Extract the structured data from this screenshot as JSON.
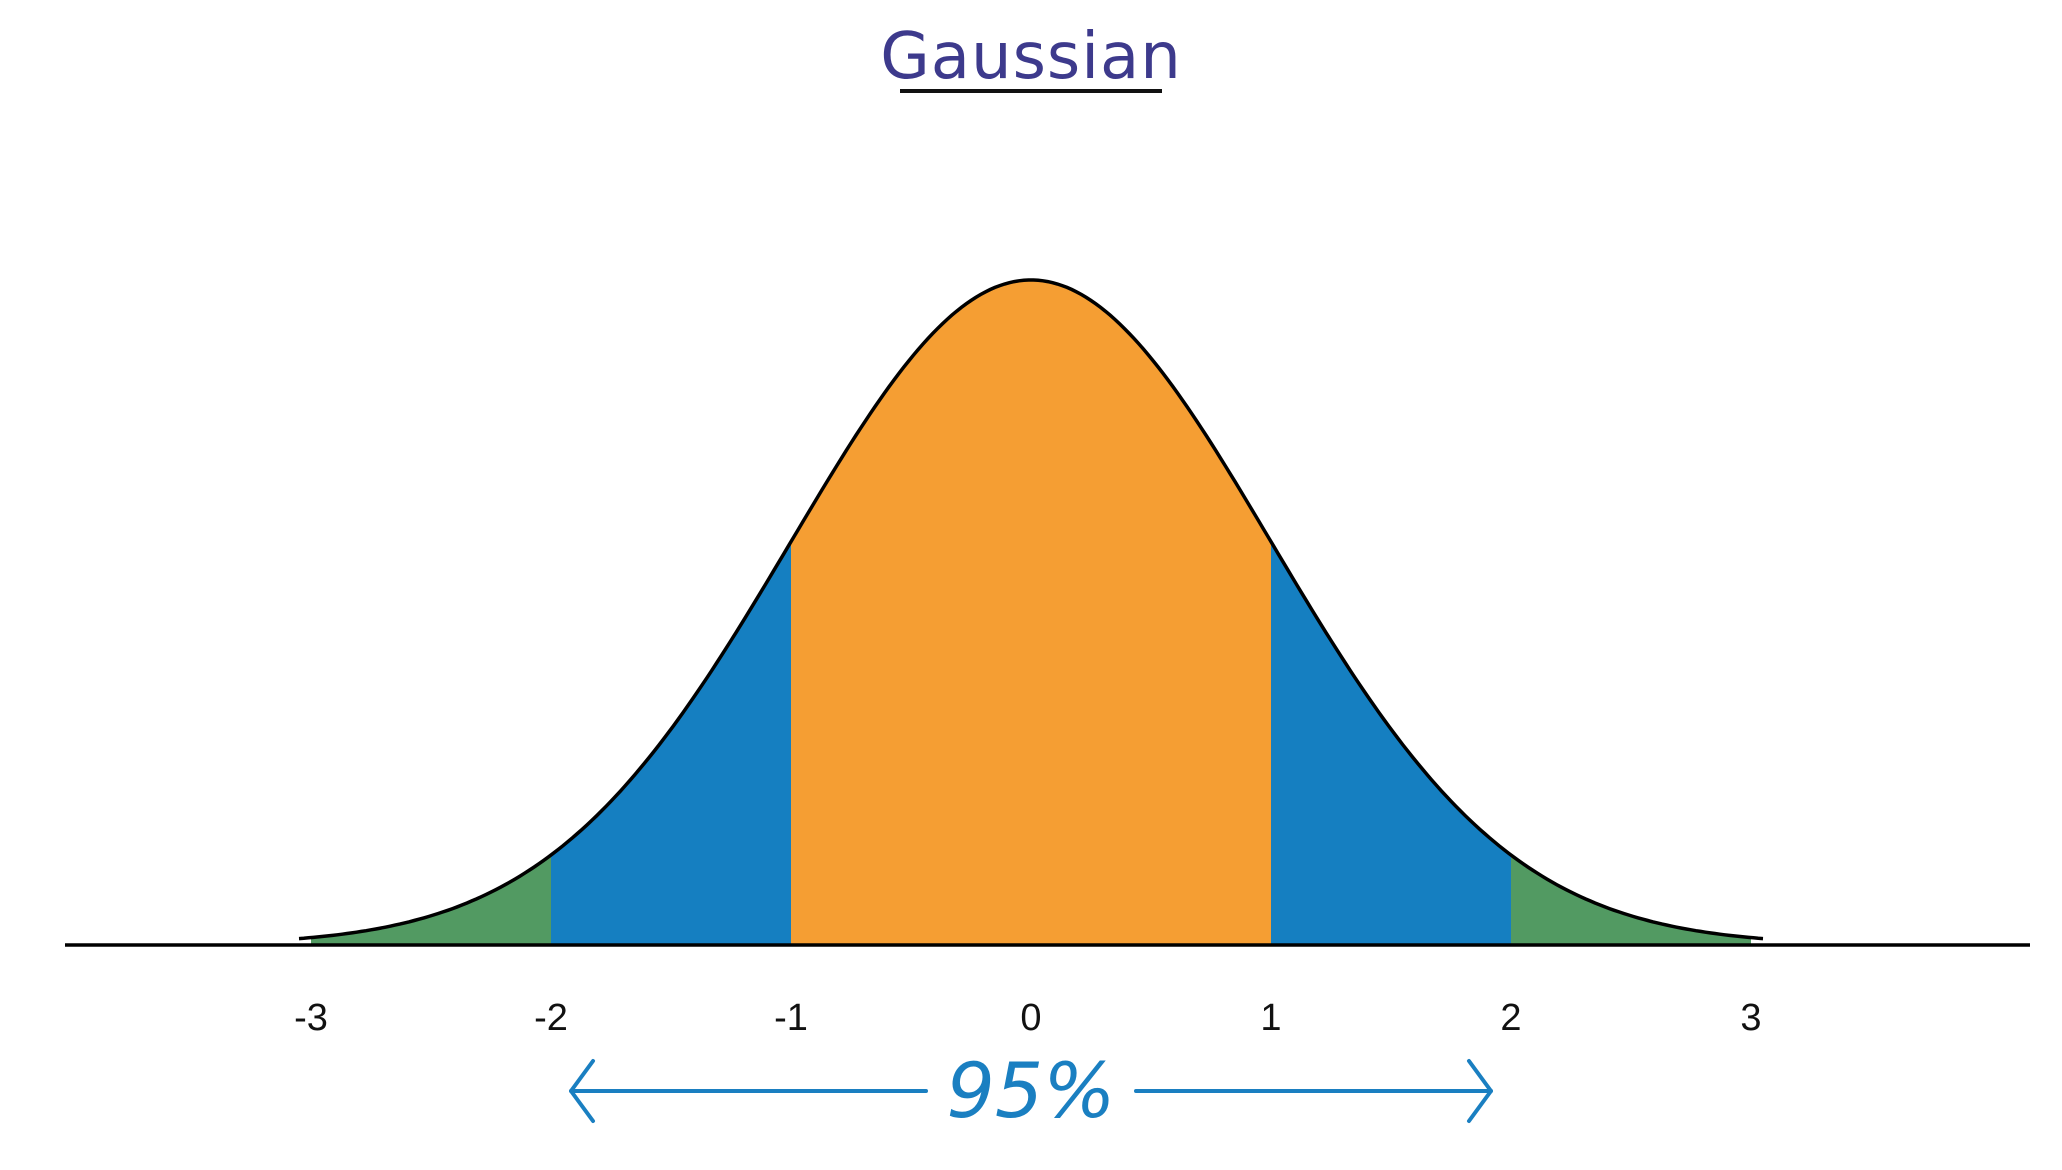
{
  "title": "Gaussian",
  "colors": {
    "inner_band": "#f59e33",
    "middle_band": "#157fc1",
    "outer_band": "#529a62",
    "curve": "#000000",
    "title": "#3d3a8c",
    "annotation": "#1a7fc1"
  },
  "distribution": {
    "mean": 0,
    "std_dev": 1,
    "x_range": [
      -4.2,
      4.2
    ]
  },
  "ticks": [
    {
      "value": -3,
      "label": "-3"
    },
    {
      "value": -2,
      "label": "-2"
    },
    {
      "value": -1,
      "label": "-1"
    },
    {
      "value": 0,
      "label": "0"
    },
    {
      "value": 1,
      "label": "1"
    },
    {
      "value": 2,
      "label": "2"
    },
    {
      "value": 3,
      "label": "3"
    }
  ],
  "bands": [
    {
      "name": "outer",
      "from": -3,
      "to": -2,
      "color_key": "outer_band"
    },
    {
      "name": "middle",
      "from": -2,
      "to": -1,
      "color_key": "middle_band"
    },
    {
      "name": "inner",
      "from": -1,
      "to": 1,
      "color_key": "inner_band"
    },
    {
      "name": "middle",
      "from": 1,
      "to": 2,
      "color_key": "middle_band"
    },
    {
      "name": "outer",
      "from": 2,
      "to": 3,
      "color_key": "outer_band"
    }
  ],
  "annotation": {
    "label": "95%",
    "from": -2,
    "to": 2
  }
}
